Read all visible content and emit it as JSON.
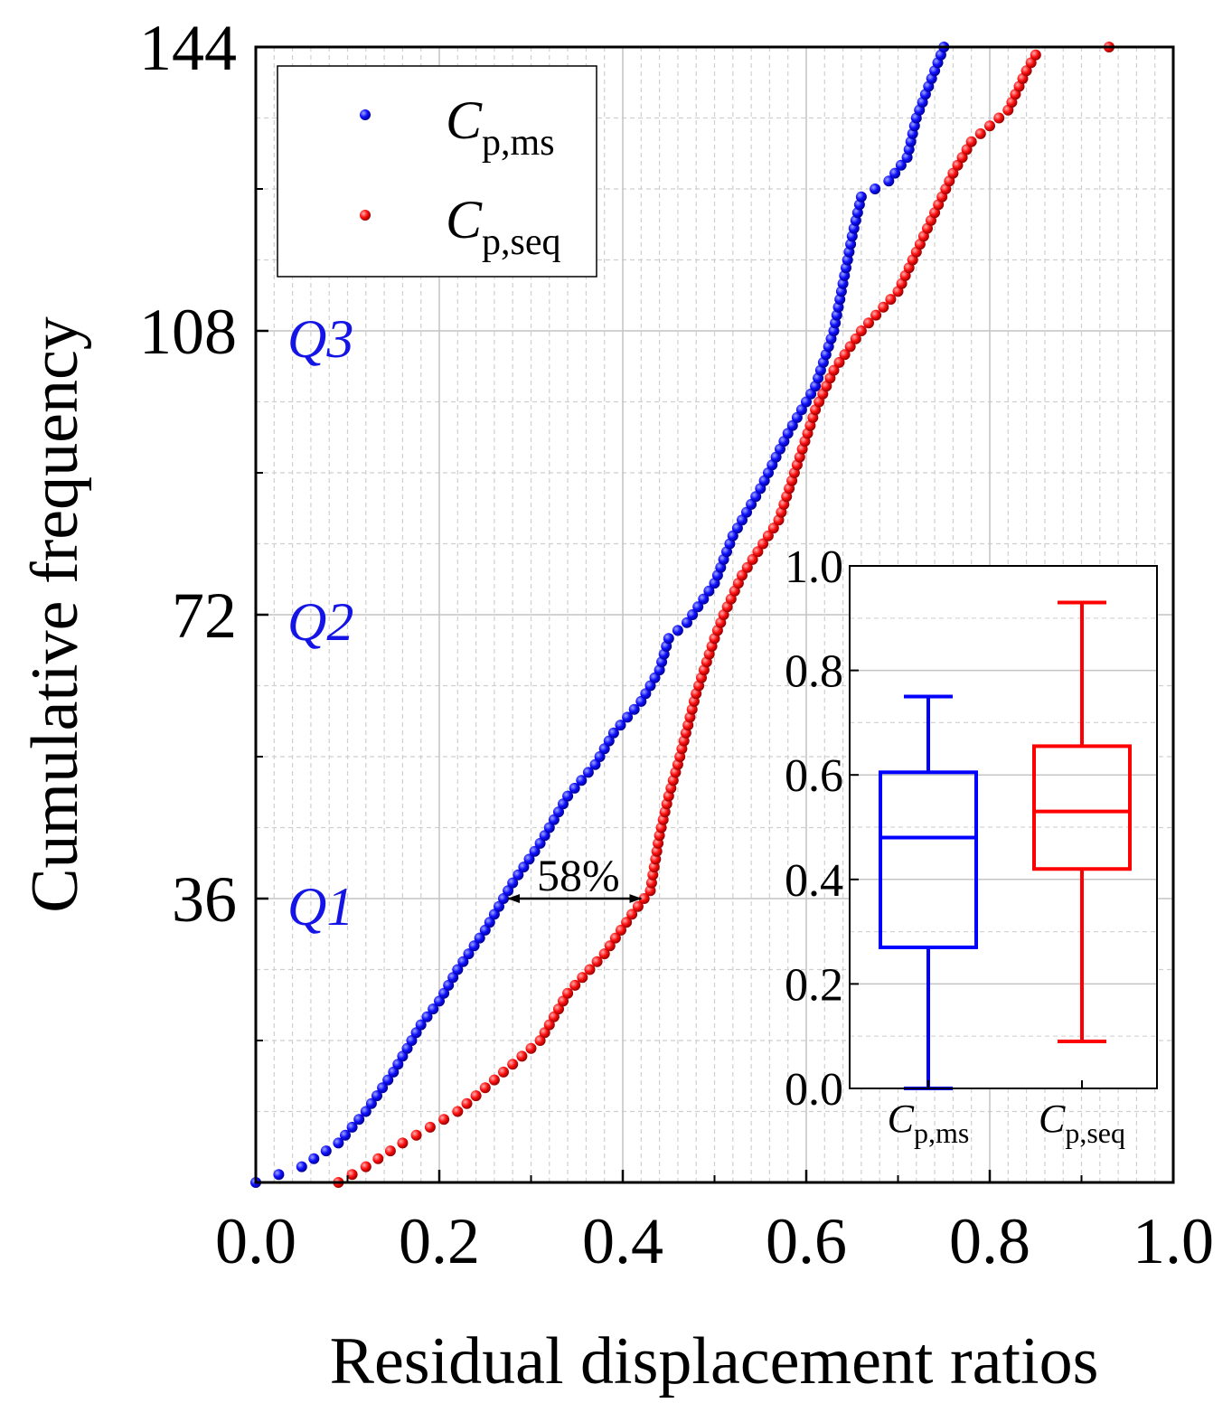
{
  "chart_data": {
    "type": "scatter",
    "main": {
      "xlabel": "Residual displacement ratios",
      "ylabel": "Cumulative frequency",
      "xlim": [
        0.0,
        1.0
      ],
      "ylim": [
        0,
        144
      ],
      "xticks": [
        0.0,
        0.2,
        0.4,
        0.6,
        0.8,
        1.0
      ],
      "xtick_labels": [
        "0.0",
        "0.2",
        "0.4",
        "0.6",
        "0.8",
        "1.0"
      ],
      "yticks": [
        36,
        72,
        108,
        144
      ],
      "ytick_labels": [
        "36",
        "72",
        "108",
        "144"
      ],
      "grid": true,
      "legend_position": "top-left",
      "quartile_labels": [
        {
          "label": "Q1",
          "y": 36
        },
        {
          "label": "Q2",
          "y": 72
        },
        {
          "label": "Q3",
          "y": 108
        }
      ],
      "annotation": {
        "text": "58%",
        "y": 36,
        "x_from": 0.275,
        "x_to": 0.42
      },
      "series": [
        {
          "name": "C_p,ms",
          "legend_main": "C",
          "legend_sub": "p,ms",
          "color": "#0000ff",
          "anchors": [
            [
              0.0,
              0
            ],
            [
              0.05,
              2
            ],
            [
              0.09,
              5
            ],
            [
              0.12,
              9
            ],
            [
              0.15,
              14
            ],
            [
              0.18,
              20
            ],
            [
              0.2,
              23
            ],
            [
              0.22,
              27
            ],
            [
              0.25,
              32
            ],
            [
              0.28,
              38
            ],
            [
              0.31,
              43
            ],
            [
              0.34,
              49
            ],
            [
              0.37,
              53
            ],
            [
              0.39,
              57
            ],
            [
              0.42,
              61
            ],
            [
              0.44,
              65
            ],
            [
              0.45,
              69
            ],
            [
              0.47,
              71
            ],
            [
              0.5,
              76
            ],
            [
              0.52,
              82
            ],
            [
              0.55,
              88
            ],
            [
              0.58,
              95
            ],
            [
              0.61,
              101
            ],
            [
              0.63,
              108
            ],
            [
              0.64,
              114
            ],
            [
              0.65,
              120
            ],
            [
              0.66,
              125
            ],
            [
              0.69,
              127
            ],
            [
              0.71,
              130
            ],
            [
              0.72,
              135
            ],
            [
              0.74,
              141
            ],
            [
              0.75,
              144
            ]
          ]
        },
        {
          "name": "C_p,seq",
          "legend_main": "C",
          "legend_sub": "p,seq",
          "color": "#ff0000",
          "anchors": [
            [
              0.09,
              0
            ],
            [
              0.12,
              2
            ],
            [
              0.16,
              5
            ],
            [
              0.22,
              9
            ],
            [
              0.27,
              14
            ],
            [
              0.31,
              18
            ],
            [
              0.34,
              24
            ],
            [
              0.38,
              29
            ],
            [
              0.41,
              34
            ],
            [
              0.43,
              37
            ],
            [
              0.44,
              44
            ],
            [
              0.45,
              49
            ],
            [
              0.46,
              53
            ],
            [
              0.48,
              62
            ],
            [
              0.5,
              69
            ],
            [
              0.51,
              72
            ],
            [
              0.53,
              77
            ],
            [
              0.57,
              84
            ],
            [
              0.59,
              91
            ],
            [
              0.61,
              98
            ],
            [
              0.63,
              103
            ],
            [
              0.66,
              108
            ],
            [
              0.7,
              113
            ],
            [
              0.72,
              118
            ],
            [
              0.74,
              123
            ],
            [
              0.76,
              128
            ],
            [
              0.78,
              132
            ],
            [
              0.8,
              134
            ],
            [
              0.82,
              136
            ],
            [
              0.84,
              141
            ],
            [
              0.85,
              143
            ],
            [
              0.93,
              144
            ]
          ]
        }
      ]
    },
    "inset": {
      "type": "box",
      "ylim": [
        0.0,
        1.0
      ],
      "yticks": [
        0.0,
        0.2,
        0.4,
        0.6,
        0.8,
        1.0
      ],
      "ytick_labels": [
        "0.0",
        "0.2",
        "0.4",
        "0.6",
        "0.8",
        "1.0"
      ],
      "grid": true,
      "boxes": [
        {
          "category_main": "C",
          "category_sub": "p,ms",
          "color": "#0000ff",
          "min": 0.0,
          "q1": 0.27,
          "median": 0.48,
          "q3": 0.605,
          "max": 0.75
        },
        {
          "category_main": "C",
          "category_sub": "p,seq",
          "color": "#ff0000",
          "min": 0.09,
          "q1": 0.42,
          "median": 0.53,
          "q3": 0.655,
          "max": 0.93
        }
      ]
    }
  }
}
